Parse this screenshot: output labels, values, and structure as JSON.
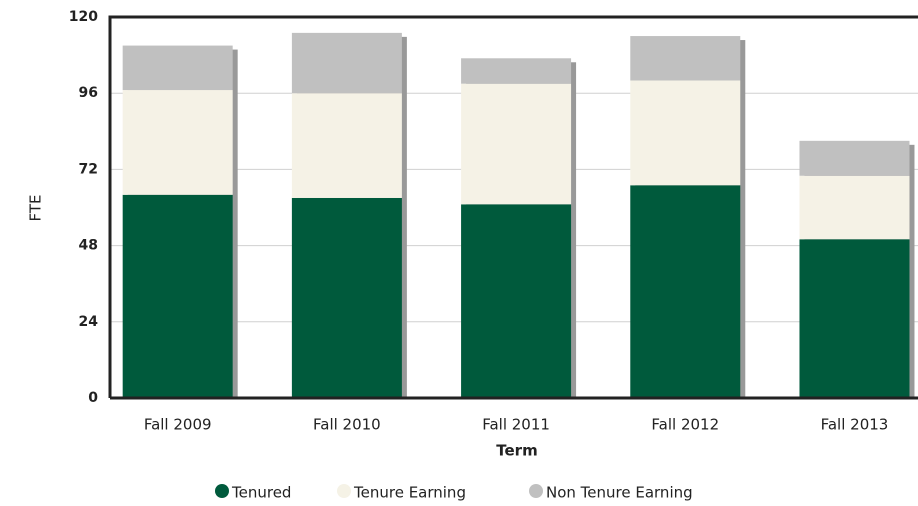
{
  "chart_data": {
    "type": "stacked_bar",
    "x_label": "Term",
    "y_label": "FTE",
    "categories": [
      "Fall 2009",
      "Fall 2010",
      "Fall 2011",
      "Fall 2012",
      "Fall 2013"
    ],
    "series": [
      {
        "name": "Tenured",
        "color": "#005a3c",
        "values": [
          64,
          63,
          61,
          67,
          50
        ]
      },
      {
        "name": "Tenure Earning",
        "color": "#f5f2e6",
        "values": [
          33,
          33,
          38,
          33,
          20
        ]
      },
      {
        "name": "Non Tenure Earning",
        "color": "#c0c0c0",
        "values": [
          14,
          19,
          8,
          14,
          11
        ]
      }
    ],
    "ylim": [
      0,
      120
    ],
    "yticks": [
      0,
      24,
      48,
      72,
      96,
      120
    ],
    "grid": true
  }
}
